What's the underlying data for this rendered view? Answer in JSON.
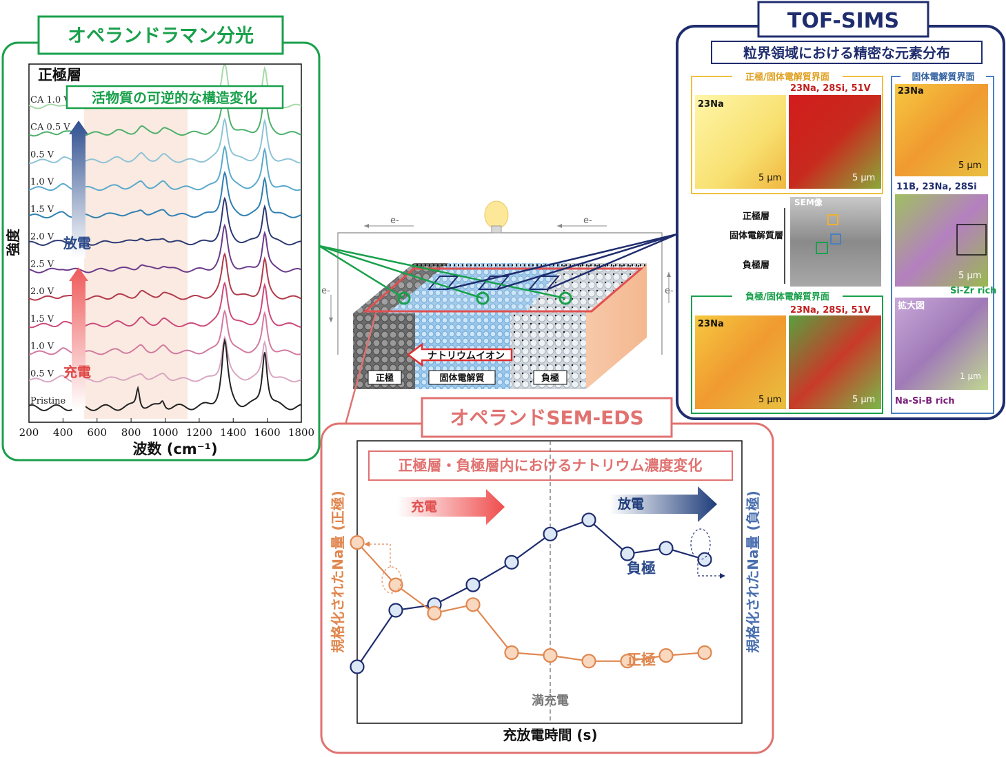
{
  "raman": {
    "title": "オペランドラマン分光",
    "layer_label": "正極層",
    "subtitle": "活物質の可逆的な構造変化",
    "ylabel": "強度",
    "xlabel": "波数 (cm⁻¹)",
    "discharge_label": "放電",
    "charge_label": "充電",
    "curve_labels": [
      "CA 1.0 V",
      "CA 0.5 V",
      "0.5 V",
      "1.0 V",
      "1.5 V",
      "2.0 V",
      "2.5 V",
      "2.0 V",
      "1.5 V",
      "1.0 V",
      "0.5 V",
      "Pristine"
    ],
    "xticks": [
      "200",
      "400",
      "600",
      "800",
      "1000",
      "1200",
      "1400",
      "1600",
      "1800"
    ],
    "curve_colors": [
      "#a6d9a8",
      "#4db06a",
      "#8ec3d6",
      "#59a9cc",
      "#2f7fb3",
      "#2c3a73",
      "#6b3a8a",
      "#b13a4a",
      "#cc4a7a",
      "#d27aa0",
      "#d9a6c2",
      "#222222"
    ]
  },
  "tofsims": {
    "title": "TOF-SIMS",
    "subtitle": "粒界領域における精密な元素分布",
    "cathode_interface": "正極/固体電解質界面",
    "anode_interface": "負極/固体電解質界面",
    "electrolyte_interface": "固体電解質界面",
    "na23": "23Na",
    "na_si_v": "23Na, 28Si, 51V",
    "b_na_si": "11B, 23Na, 28Si",
    "scale_5": "5 μm",
    "scale_1": "1 μm",
    "sem_label": "SEM像",
    "sem_layers": [
      "正極層",
      "固体電解質層",
      "負極層"
    ],
    "sizr": "Si-Zr rich",
    "nasib": "Na-Si-B rich",
    "zoom_label": "拡大図"
  },
  "cell": {
    "electron": "e-",
    "sodium_ion": "ナトリウムイオン",
    "cathode": "正極",
    "electrolyte": "固体電解質",
    "anode": "負極"
  },
  "semeds": {
    "title": "オペランドSEM-EDS",
    "subtitle": "正極層・負極層内におけるナトリウム濃度変化",
    "charge_label": "充電",
    "discharge_label": "放電",
    "left_ylabel": "規格化されたNa量 (正極)",
    "right_ylabel": "規格化されたNa量 (負極)",
    "xlabel": "充放電時間 (s)",
    "full_charge": "満充電",
    "anode_series": "負極",
    "cathode_series": "正極"
  },
  "chart_data": {
    "type": "line",
    "title": "正極層・負極層内におけるナトリウム濃度変化",
    "xlabel": "充放電時間 (s)",
    "ylabel": "規格化されたNa量",
    "x": [
      1,
      2,
      3,
      4,
      5,
      6,
      7,
      8,
      9,
      10
    ],
    "series": [
      {
        "name": "負極",
        "color": "#1f2d6e",
        "values": [
          0.2,
          0.4,
          0.42,
          0.49,
          0.57,
          0.67,
          0.72,
          0.6,
          0.62,
          0.58
        ]
      },
      {
        "name": "正極",
        "color": "#e0874f",
        "values": [
          0.64,
          0.49,
          0.39,
          0.42,
          0.25,
          0.24,
          0.22,
          0.22,
          0.24,
          0.25
        ]
      }
    ]
  },
  "colors": {
    "green": "#19a04b",
    "navy": "#1f2d6e",
    "salmon": "#e07270",
    "orange": "#e0874f",
    "yellow": "#f0c040"
  }
}
